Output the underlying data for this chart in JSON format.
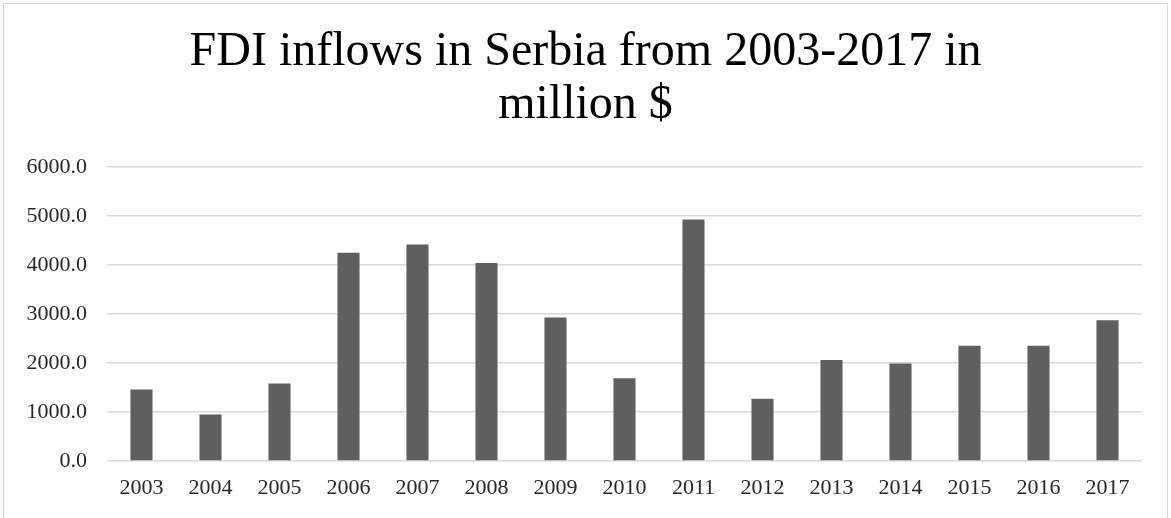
{
  "chart_data": {
    "type": "bar",
    "title": "FDI inflows in Serbia from 2003-2017 in million $",
    "categories": [
      "2003",
      "2004",
      "2005",
      "2006",
      "2007",
      "2008",
      "2009",
      "2010",
      "2011",
      "2012",
      "2013",
      "2014",
      "2015",
      "2016",
      "2017"
    ],
    "values": [
      1460,
      950,
      1580,
      4250,
      4420,
      4040,
      2930,
      1690,
      4930,
      1270,
      2060,
      1990,
      2350,
      2350,
      2870
    ],
    "color": "#5f5f5f",
    "ylim": [
      0,
      6000
    ],
    "yticks": [
      {
        "value": 0,
        "label": "0.0"
      },
      {
        "value": 1000,
        "label": "1000.0"
      },
      {
        "value": 2000,
        "label": "2000.0"
      },
      {
        "value": 3000,
        "label": "3000.0"
      },
      {
        "value": 4000,
        "label": "4000.0"
      },
      {
        "value": 5000,
        "label": "5000.0"
      },
      {
        "value": 6000,
        "label": "6000.0"
      }
    ],
    "grid": "y"
  }
}
